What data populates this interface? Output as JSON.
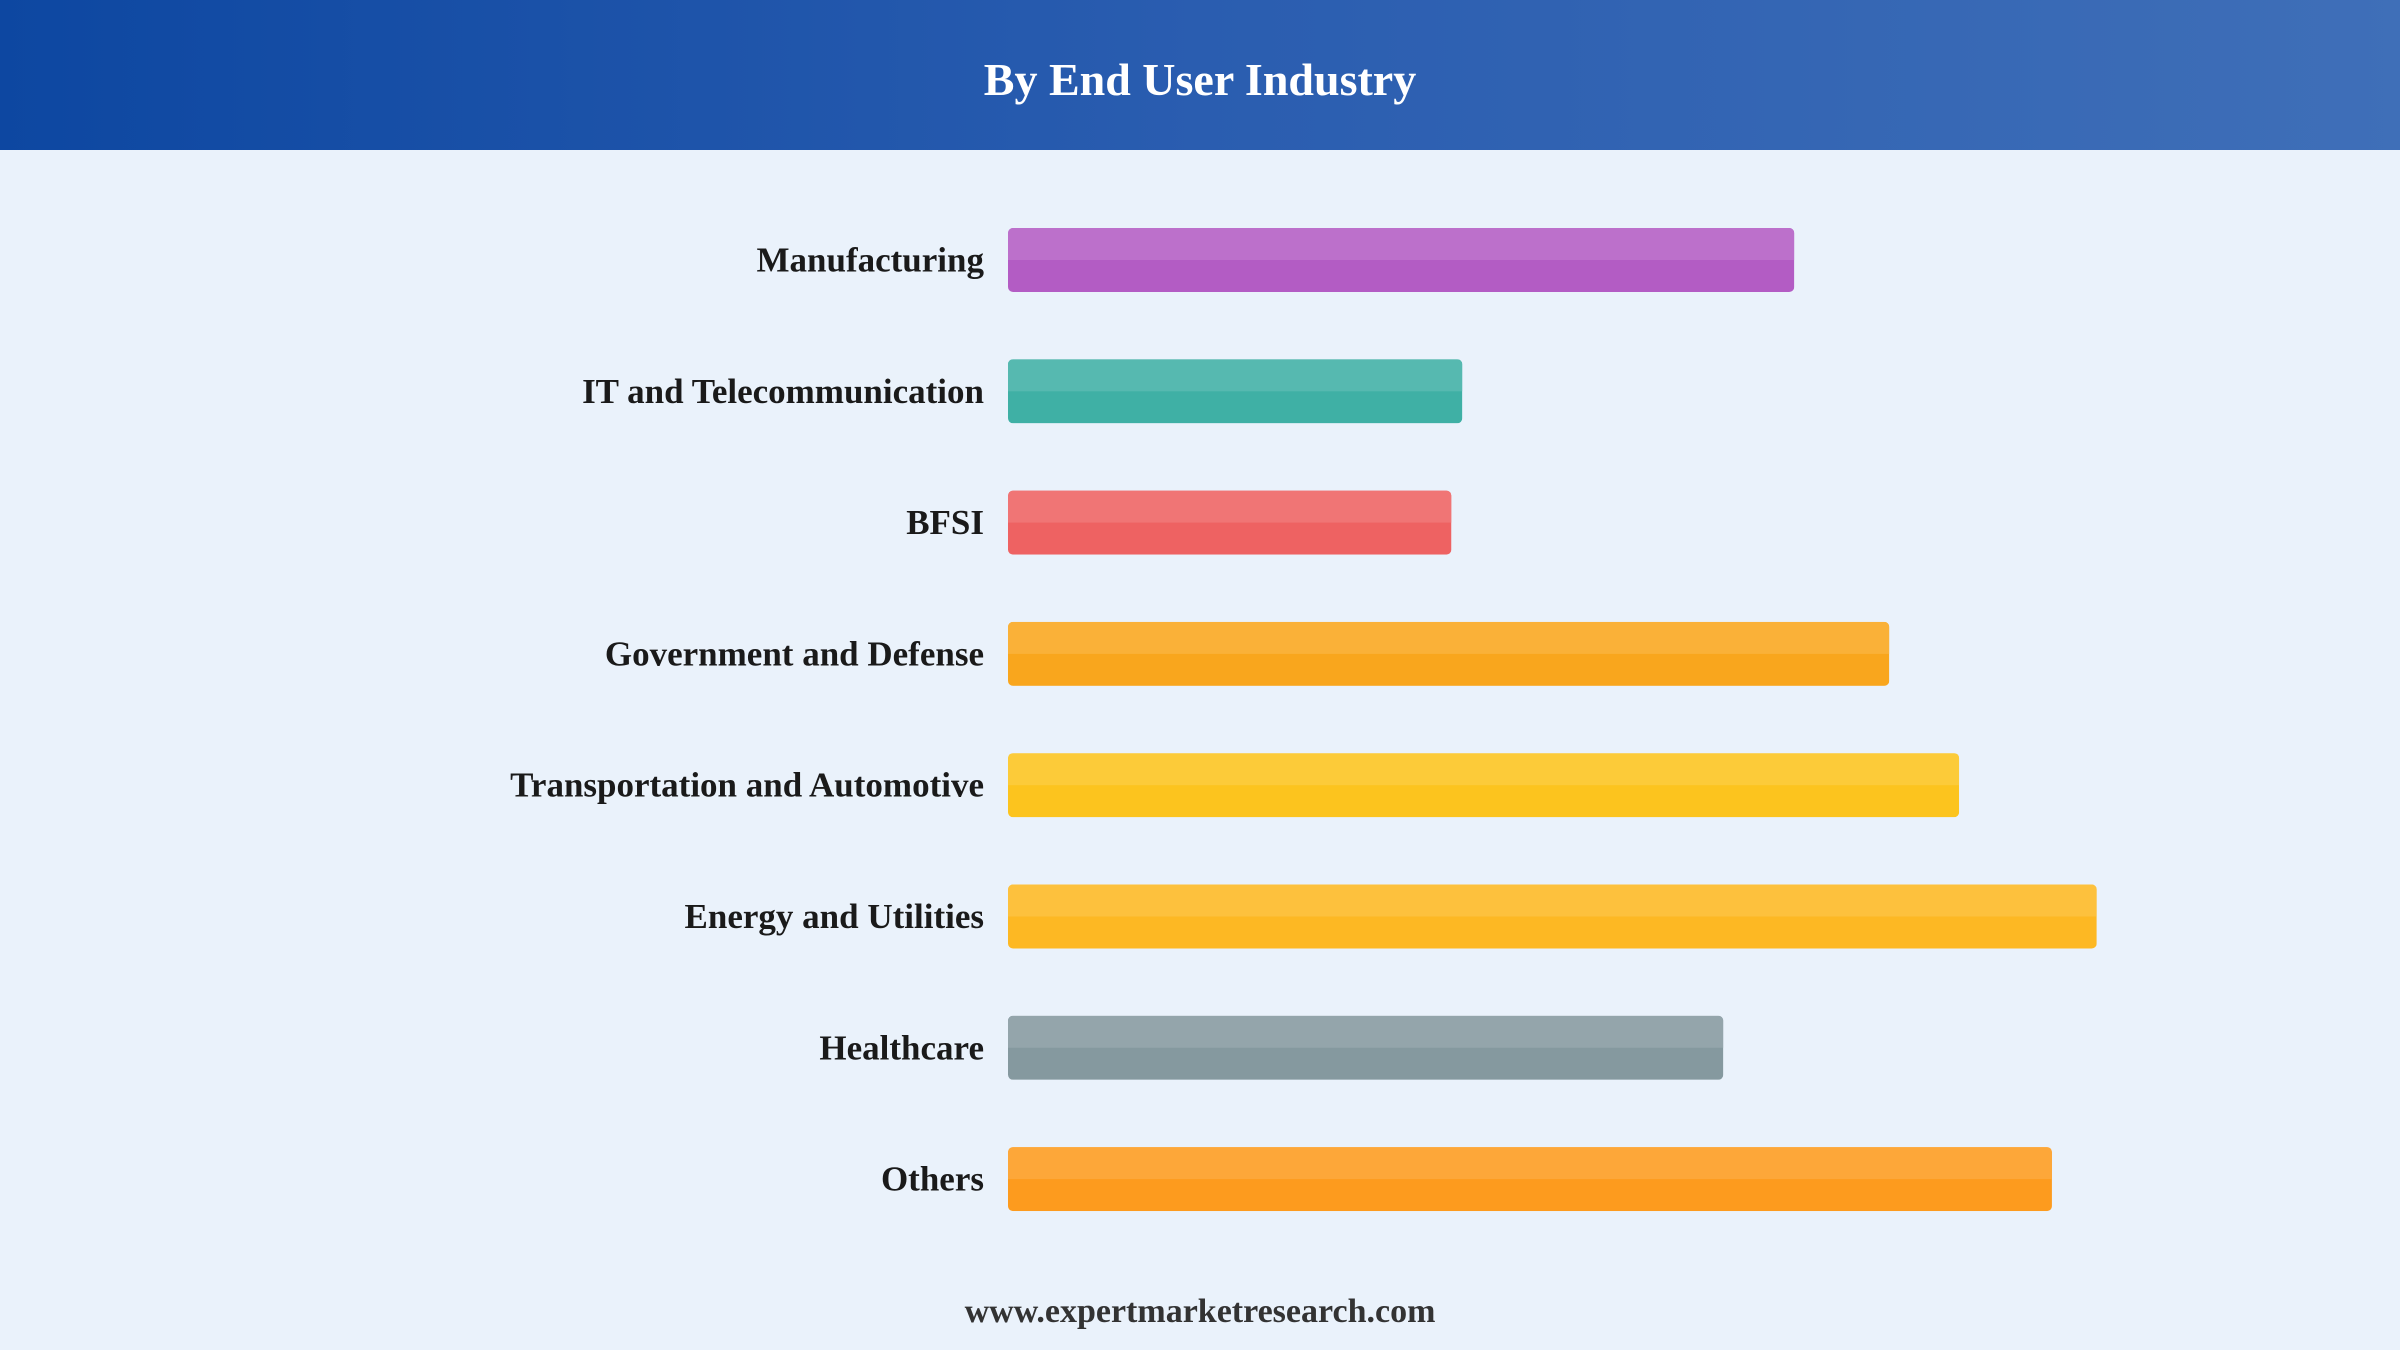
{
  "header": {
    "title": "By End User Industry"
  },
  "chart_data": {
    "type": "bar",
    "orientation": "horizontal",
    "title": "By End User Industry",
    "xlabel": "",
    "ylabel": "",
    "categories": [
      "Manufacturing",
      "IT and Telecommunication",
      "BFSI",
      "Government and Defense",
      "Transportation and Automotive",
      "Energy and Utilities",
      "Healthcare",
      "Others"
    ],
    "values": [
      72,
      41.6,
      40.6,
      80.7,
      87.1,
      99.7,
      65.5,
      95.6
    ],
    "xlim": [
      0,
      100
    ],
    "grid": false,
    "legend": "none",
    "colors": [
      "#b35cc4",
      "#3fb0a5",
      "#ee6262",
      "#f9a61d",
      "#fcc41e",
      "#fdb823",
      "#85999f",
      "#fd9b1e"
    ]
  },
  "footer": {
    "source": "www.expertmarketresearch.com"
  }
}
